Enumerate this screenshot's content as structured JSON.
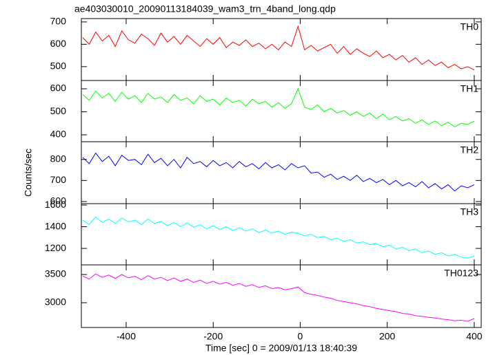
{
  "chart_data": {
    "type": "line",
    "title": "ae403030010_20090113184039_wam3_trn_4band_long.qdp",
    "x_label": "Time [sec] 0 = 2009/01/13 18:40:39",
    "y_label": "Counts/sec",
    "xlim": [
      -503,
      416
    ],
    "xticks": [
      -400,
      -200,
      0,
      200,
      400
    ],
    "x": [
      -500,
      -485,
      -470,
      -455,
      -440,
      -425,
      -410,
      -395,
      -380,
      -365,
      -350,
      -335,
      -320,
      -305,
      -290,
      -275,
      -260,
      -245,
      -230,
      -215,
      -200,
      -185,
      -170,
      -155,
      -140,
      -125,
      -110,
      -95,
      -80,
      -65,
      -50,
      -35,
      -20,
      -5,
      10,
      25,
      40,
      55,
      70,
      85,
      100,
      115,
      130,
      145,
      160,
      175,
      190,
      205,
      220,
      235,
      250,
      265,
      280,
      295,
      310,
      325,
      340,
      355,
      370,
      385,
      400
    ],
    "series": [
      {
        "name": "TH0",
        "color": "#ff0000",
        "ylim": [
          438,
          715
        ],
        "yticks": [
          500,
          600,
          700
        ],
        "values": [
          630,
          600,
          655,
          615,
          640,
          590,
          660,
          620,
          605,
          645,
          625,
          595,
          650,
          610,
          635,
          600,
          640,
          615,
          590,
          625,
          600,
          630,
          585,
          610,
          595,
          620,
          590,
          605,
          580,
          600,
          575,
          610,
          590,
          680,
          575,
          595,
          570,
          585,
          600,
          560,
          590,
          555,
          580,
          560,
          545,
          570,
          540,
          555,
          530,
          550,
          520,
          540,
          510,
          530,
          505,
          520,
          495,
          510,
          490,
          500,
          485
        ]
      },
      {
        "name": "TH1",
        "color": "#00ff00",
        "ylim": [
          370,
          636
        ],
        "yticks": [
          400,
          500,
          600
        ],
        "values": [
          575,
          550,
          590,
          560,
          580,
          545,
          585,
          555,
          570,
          540,
          580,
          555,
          565,
          540,
          575,
          550,
          560,
          535,
          570,
          545,
          555,
          530,
          560,
          540,
          550,
          525,
          555,
          535,
          545,
          520,
          540,
          515,
          535,
          600,
          520,
          510,
          530,
          500,
          515,
          495,
          505,
          485,
          500,
          480,
          495,
          470,
          490,
          465,
          480,
          460,
          470,
          450,
          465,
          445,
          460,
          440,
          455,
          435,
          450,
          445,
          460
        ]
      },
      {
        "name": "TH2",
        "color": "#0000ff",
        "ylim": [
          590,
          884
        ],
        "yticks": [
          600,
          700,
          800
        ],
        "values": [
          810,
          780,
          830,
          790,
          815,
          770,
          820,
          795,
          800,
          775,
          825,
          785,
          805,
          770,
          800,
          760,
          810,
          780,
          790,
          765,
          795,
          770,
          785,
          760,
          790,
          765,
          780,
          755,
          785,
          760,
          775,
          750,
          780,
          760,
          770,
          735,
          740,
          715,
          730,
          705,
          720,
          700,
          725,
          695,
          710,
          690,
          705,
          680,
          700,
          675,
          690,
          670,
          695,
          665,
          685,
          660,
          680,
          650,
          675,
          665,
          680
        ]
      },
      {
        "name": "TH3",
        "color": "#00ffff",
        "ylim": [
          1048,
          1613
        ],
        "yticks": [
          1200,
          1400,
          1600
        ],
        "values": [
          1460,
          1420,
          1490,
          1440,
          1470,
          1430,
          1480,
          1445,
          1460,
          1420,
          1470,
          1430,
          1450,
          1410,
          1440,
          1400,
          1435,
          1395,
          1420,
          1380,
          1410,
          1375,
          1400,
          1365,
          1390,
          1360,
          1380,
          1345,
          1370,
          1340,
          1360,
          1330,
          1350,
          1340,
          1315,
          1330,
          1300,
          1310,
          1280,
          1295,
          1265,
          1280,
          1250,
          1260,
          1235,
          1245,
          1215,
          1230,
          1195,
          1210,
          1180,
          1195,
          1160,
          1175,
          1145,
          1160,
          1130,
          1145,
          1120,
          1110,
          1130
        ]
      },
      {
        "name": "TH0123",
        "color": "#ff00ff",
        "ylim": [
          2561,
          3671
        ],
        "yticks": [
          3000,
          3500
        ],
        "values": [
          3470,
          3420,
          3510,
          3450,
          3490,
          3430,
          3500,
          3440,
          3470,
          3410,
          3480,
          3420,
          3450,
          3390,
          3440,
          3380,
          3420,
          3360,
          3400,
          3340,
          3380,
          3330,
          3360,
          3310,
          3340,
          3290,
          3320,
          3270,
          3300,
          3250,
          3270,
          3230,
          3250,
          3280,
          3180,
          3150,
          3130,
          3100,
          3080,
          3040,
          3020,
          3000,
          2980,
          2950,
          2930,
          2900,
          2880,
          2860,
          2840,
          2810,
          2800,
          2770,
          2760,
          2740,
          2730,
          2710,
          2700,
          2680,
          2690,
          2670,
          2720
        ]
      }
    ]
  }
}
